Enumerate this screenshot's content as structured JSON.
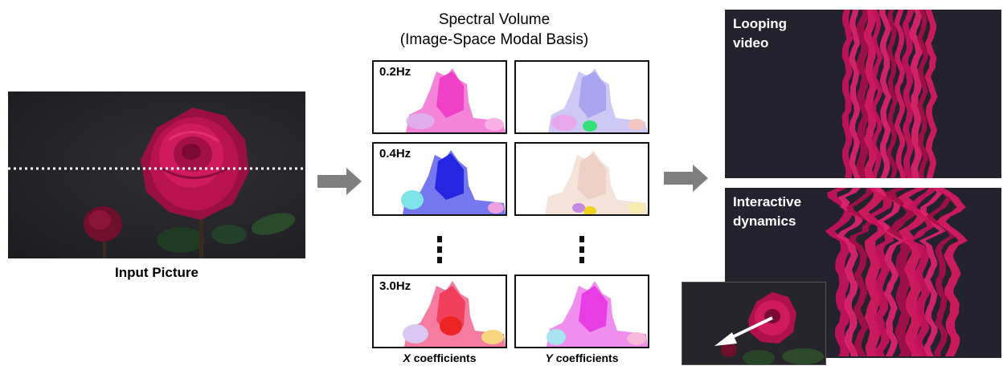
{
  "input": {
    "caption": "Input Picture"
  },
  "spectral": {
    "title_line1": "Spectral Volume",
    "title_line2": "(Image-Space Modal Basis)",
    "frequencies": [
      "0.2Hz",
      "0.4Hz",
      "3.0Hz"
    ],
    "x_coef_var": "X",
    "y_coef_var": "Y",
    "coef_suffix": " coefficients"
  },
  "outputs": {
    "looping_line1": "Looping",
    "looping_line2": "video",
    "interactive_line1": "Interactive",
    "interactive_line2": "dynamics"
  },
  "colors": {
    "arrow": "#7f7f7f",
    "rose": "#c8125a",
    "background_dark": "#23222d"
  }
}
